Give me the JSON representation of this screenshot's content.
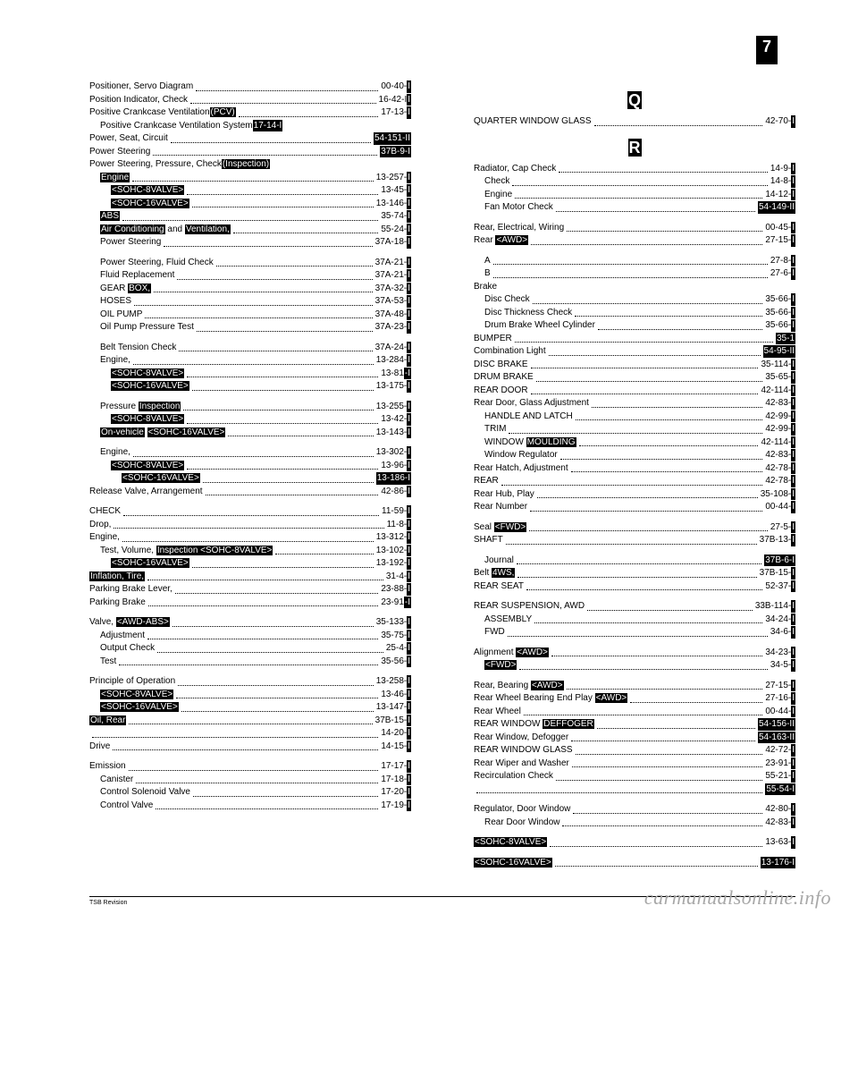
{
  "page_number": "7",
  "watermark": "carmanualsonline.info",
  "footnote": "TSB Revision",
  "left": [
    {
      "l": "Positioner, Servo Diagram",
      "r": "00-40-",
      "rh": "I",
      "i": 0
    },
    {
      "l": "Position Indicator, Check",
      "r": "16-42-I",
      "rh": "I",
      "i": 0
    },
    {
      "l": "Positive Crankcase Ventilation",
      "lh": "(PCV)",
      "r": "17-13-",
      "rh": "I",
      "i": 0
    },
    {
      "l": "Positive Crankcase Ventilation System",
      "rh": "17-14-I",
      "i": 1,
      "rhonly": true
    },
    {
      "l": "Power, Seat, Circuit",
      "r": "",
      "rh": "54-151-II",
      "i": 0
    },
    {
      "l": "Power Steering",
      "r": "",
      "rh": "37B-9-I",
      "i": 0
    },
    {
      "l": "Power Steering, Pressure, Check",
      "lh": "(Inspection)",
      "r": "",
      "i": 0,
      "noref": true
    },
    {
      "l": "Engine,",
      "lh2": "Engine",
      "r": "13-257-",
      "rh": "I",
      "i": 1
    },
    {
      "l": "<SOHC-8VALVE>",
      "r": "13-45-",
      "rh": "I",
      "i": 2,
      "allhl": true
    },
    {
      "l": "<SOHC-16VALVE>",
      "r": "13-146-",
      "rh": "I",
      "i": 2,
      "allhl": true
    },
    {
      "l": "ABS,",
      "lh2": "ABS",
      "r": "35-74-",
      "rh": "I",
      "i": 1
    },
    {
      "l": "Conditioning",
      "lh2": "Air Conditioning",
      "l2": " and ",
      "lh3": "Ventilation,",
      "r": "55-24-",
      "rh": "I",
      "i": 1
    },
    {
      "l": "Power Steering",
      "r": "37A-18-",
      "rh": "I",
      "i": 1
    },
    {
      "l": "",
      "i": 0,
      "blank": true
    },
    {
      "l": "Power Steering, Fluid Check",
      "r": "37A-21-",
      "rh": "I",
      "i": 1
    },
    {
      "l": "Fluid Replacement",
      "r": "37A-21-",
      "rh": "I",
      "i": 1
    },
    {
      "l": "GEAR ",
      "lh": "BOX,",
      "r": "37A-32-",
      "rh": "I",
      "i": 1
    },
    {
      "l": "HOSES",
      "r": "37A-53-",
      "rh": "I",
      "i": 1
    },
    {
      "l": "OIL PUMP",
      "r": "37A-48-",
      "rh": "I",
      "i": 1
    },
    {
      "l": "Oil Pump Pressure Test",
      "r": "37A-23-",
      "rh": "I",
      "i": 1
    },
    {
      "l": "",
      "i": 0,
      "blank": true
    },
    {
      "l": "Belt Tension Check",
      "r": "37A-24-",
      "rh": "I",
      "i": 1
    },
    {
      "l": "Engine,",
      "r": "13-284-",
      "rh": "I",
      "i": 1
    },
    {
      "l": "<SOHC-8VALVE>",
      "r": "13-81",
      "rh": "-I",
      "i": 2,
      "allhl": true
    },
    {
      "l": "<SOHC-16VALVE>",
      "r": "13-175-",
      "rh": "I",
      "i": 2,
      "allhl": true
    },
    {
      "l": "",
      "i": 0,
      "blank": true
    },
    {
      "l": "Pressure ",
      "lh": "Inspection",
      "r": "13-255-",
      "rh": "I",
      "i": 1
    },
    {
      "l": "<SOHC-8VALVE>",
      "r": "13-42-",
      "rh": "I",
      "i": 2,
      "allhl": true
    },
    {
      "l": "On-vehicle",
      "lpre": "On-vehicle",
      "l2": "              ",
      "lh": "<SOHC-16VALVE>",
      "r": "13-143-",
      "rh": "I",
      "i": 1
    },
    {
      "l": "",
      "i": 0,
      "blank": true
    },
    {
      "l": "Engine,",
      "r": "13-302-",
      "rh": "I",
      "i": 1
    },
    {
      "l": "<SOHC-8VALVE>",
      "r": "13-96-",
      "rh": "I",
      "i": 2,
      "allhl": true
    },
    {
      "l": "<SOHC-16VALVE>",
      "r": "13-186-",
      "rh": "I",
      "i": 3,
      "allhl": true,
      "rhall": true
    },
    {
      "l": "Release Valve, Arrangement",
      "r": "42-86-",
      "rh": "I",
      "i": 0
    },
    {
      "l": "",
      "i": 0,
      "blank": true
    },
    {
      "l": "CHECK",
      "r": "11-59-",
      "rh": "I",
      "i": 0
    },
    {
      "l": "Drop,",
      "r": "11-8-",
      "rh": "I",
      "i": 0
    },
    {
      "l": "Engine,",
      "r": "13-312-",
      "rh": "I",
      "i": 0
    },
    {
      "l": "Test, Volume, ",
      "lh": "Inspection <SOHC-8VALVE>",
      "r": "13-102-",
      "rh": "I",
      "i": 1
    },
    {
      "l": "<SOHC-16VALVE>",
      "r": "13-192-",
      "rh": "I",
      "i": 2,
      "allhl": true
    },
    {
      "l": "Inflation, Tire,",
      "lh2": "Inflation, Tire,",
      "r": "31-4-",
      "rh": "I",
      "i": 0
    },
    {
      "l": "Parking Brake Lever,",
      "r": "23-88-",
      "rh": "I",
      "i": 0
    },
    {
      "l": "Parking Brake",
      "r": "23-91",
      "rh": "-I",
      "i": 0
    },
    {
      "l": "",
      "i": 0,
      "blank": true
    },
    {
      "l": "Valve, ",
      "lh": "<AWD-ABS>",
      "r": "35-133-",
      "rh": "I",
      "i": 0
    },
    {
      "l": "Adjustment",
      "r": "35-75-",
      "rh": "I",
      "i": 1
    },
    {
      "l": "Output Check",
      "r": "25-4-",
      "rh": "I",
      "i": 1
    },
    {
      "l": "Test",
      "r": "35-56-",
      "rh": "I",
      "i": 1
    },
    {
      "l": "",
      "i": 0,
      "blank": true
    },
    {
      "l": "Principle of Operation",
      "r": "13-258-",
      "rh": "I",
      "i": 0
    },
    {
      "l": "<SOHC-8VALVE>",
      "r": "13-46-",
      "rh": "I",
      "i": 1,
      "allhl": true
    },
    {
      "l": "<SOHC-16VALVE>",
      "r": "13-147-",
      "rh": "I",
      "i": 1,
      "allhl": true
    },
    {
      "l": "Oil, Rear",
      "lh2": "Oil, Rear",
      "r": "37B-15-",
      "rh": "I",
      "i": 0
    },
    {
      "l": "",
      "r": "14-20-",
      "rh": "I",
      "i": 0,
      "dotonly": true
    },
    {
      "l": "Drive",
      "r": "14-15-",
      "rh": "I",
      "i": 0
    },
    {
      "l": "",
      "i": 0,
      "blank": true
    },
    {
      "l": "Emission",
      "r": "17-17-",
      "rh": "I",
      "i": 0
    },
    {
      "l": "Canister",
      "r": "17-18-",
      "rh": "I",
      "i": 1
    },
    {
      "l": "Control Solenoid Valve",
      "r": "17-20-",
      "rh": "I",
      "i": 1
    },
    {
      "l": "Control Valve",
      "r": "17-19-",
      "rh": "I",
      "i": 1
    }
  ],
  "right": [
    {
      "section": "Q"
    },
    {
      "l": "QUARTER WINDOW GLASS",
      "r": "42-70-",
      "rh": "I",
      "i": 0
    },
    {
      "section": "R"
    },
    {
      "l": "Radiator, Cap Check",
      "r": "14-9-",
      "rh": "I",
      "i": 0
    },
    {
      "l": "Check",
      "r": "14-8-",
      "rh": "I",
      "i": 1
    },
    {
      "l": "Engine",
      "r": "14-12-",
      "rh": "I",
      "i": 1
    },
    {
      "l": "Fan Motor Check",
      "r": "54-149-",
      "rh": "II",
      "i": 1,
      "rhall": true
    },
    {
      "l": "",
      "i": 0,
      "blank": true
    },
    {
      "l": "Rear, Electrical, Wiring",
      "r": "00-45-",
      "rh": "I",
      "i": 0
    },
    {
      "l": "Rear ",
      "lh": "<AWD>",
      "r": "27-15-",
      "rh": "I",
      "i": 0
    },
    {
      "l": "",
      "i": 0,
      "blank": true
    },
    {
      "l": "A",
      "r": "27-8-",
      "rh": "I",
      "i": 1
    },
    {
      "l": "B",
      "r": "27-6-",
      "rh": "I",
      "i": 1
    },
    {
      "l": "Brake",
      "i": 0,
      "noref": true
    },
    {
      "l": "Disc Check",
      "r": "35-66-",
      "rh": "I",
      "i": 1
    },
    {
      "l": "Disc Thickness Check",
      "r": "35-66-",
      "rh": "I",
      "i": 1
    },
    {
      "l": "Drum Brake Wheel Cylinder",
      "r": "35-66-",
      "rh": "I",
      "i": 1
    },
    {
      "l": "BUMPER",
      "r": "",
      "rh": "35-1",
      "i": 0
    },
    {
      "l": "Combination Light",
      "r": "54-95-",
      "rh": "II",
      "i": 0,
      "rhall": true
    },
    {
      "l": "DISC BRAKE",
      "r": "35-114-",
      "rh": "I",
      "i": 0
    },
    {
      "l": "DRUM BRAKE",
      "r": "35-65-",
      "rh": "I",
      "i": 0
    },
    {
      "l": "REAR DOOR",
      "r": "42-114-",
      "rh": "I",
      "i": 0
    },
    {
      "l": "Rear Door, Glass Adjustment",
      "r": "42-83-",
      "rh": "I",
      "i": 0
    },
    {
      "l": "HANDLE AND LATCH",
      "r": "42-99-",
      "rh": "I",
      "i": 1
    },
    {
      "l": "TRIM",
      "r": "42-99-",
      "rh": "I",
      "i": 1
    },
    {
      "l": "WINDOW ",
      "lh": "MOULDING",
      "r": "42-114-",
      "rh": "I",
      "i": 1
    },
    {
      "l": "Window Regulator",
      "r": "42-83-",
      "rh": "I",
      "i": 1
    },
    {
      "l": "Rear Hatch, Adjustment",
      "r": "42-78-",
      "rh": "I",
      "i": 0
    },
    {
      "l": "REAR",
      "r": "42-78-",
      "rh": "I",
      "i": 0
    },
    {
      "l": "Rear Hub, Play",
      "r": "35-108-",
      "rh": "I",
      "i": 0
    },
    {
      "l": "Rear Number",
      "r": "00-44-",
      "rh": "I",
      "i": 0
    },
    {
      "l": "",
      "i": 0,
      "blank": true
    },
    {
      "l": "Seal ",
      "lh": "<FWD>",
      "r": "27-5-",
      "rh": "I",
      "i": 0
    },
    {
      "l": "SHAFT",
      "r": "37B-13-",
      "rh": "I",
      "i": 0
    },
    {
      "l": "",
      "i": 0,
      "blank": true
    },
    {
      "l": "Journal",
      "r": "",
      "rh": "37B-6-I",
      "i": 1
    },
    {
      "l": "Belt ",
      "lh": "4WS,",
      "r": "37B-15-",
      "rh": "I",
      "i": 0
    },
    {
      "l": "REAR SEAT",
      "r": "52-37-",
      "rh": "I",
      "i": 0
    },
    {
      "l": "",
      "i": 0,
      "blank": true
    },
    {
      "l": "REAR SUSPENSION, AWD",
      "r": "33B-114-",
      "rh": "I",
      "i": 0
    },
    {
      "l": "ASSEMBLY",
      "r": "34-24-",
      "rh": "I",
      "i": 1
    },
    {
      "l": "FWD",
      "r": "34-6-",
      "rh": "I",
      "i": 1
    },
    {
      "l": "",
      "i": 0,
      "blank": true
    },
    {
      "l": "Alignment ",
      "lh": "<AWD>",
      "r": "34-23-",
      "rh": "I",
      "i": 0
    },
    {
      "l": "<FWD>",
      "r": "34-5-",
      "rh": "I",
      "i": 1,
      "allhl": true
    },
    {
      "l": "",
      "i": 0,
      "blank": true
    },
    {
      "l": "Rear, Bearing ",
      "lh": "<AWD>",
      "r": "27-15-",
      "rh": "I",
      "i": 0
    },
    {
      "l": "Rear Wheel Bearing End Play ",
      "lh": "<AWD>",
      "r": "27-16-",
      "rh": "I",
      "i": 0
    },
    {
      "l": "Rear Wheel",
      "r": "00-44-",
      "rh": "I",
      "i": 0
    },
    {
      "l": "REAR WINDOW ",
      "lh": "DEFFOGER",
      "r": "54-156-",
      "rh": "II",
      "i": 0,
      "rhall": true
    },
    {
      "l": "Rear Window, Defogger",
      "r": "54-163-",
      "rh": "II",
      "i": 0,
      "rhall": true
    },
    {
      "l": "REAR WINDOW GLASS",
      "r": "42-72-",
      "rh": "I",
      "i": 0
    },
    {
      "l": "Rear Wiper and Washer",
      "r": "23-91-",
      "rh": "I",
      "i": 0
    },
    {
      "l": "Recirculation Check",
      "r": "55-21-",
      "rh": "I",
      "i": 0
    },
    {
      "l": "",
      "r": "",
      "rh": "55-54-I",
      "i": 0,
      "dotonly": true
    },
    {
      "l": "",
      "i": 0,
      "blank": true
    },
    {
      "l": "Regulator, Door Window",
      "r": "42-80-",
      "rh": "I",
      "i": 0
    },
    {
      "l": "Rear Door Window",
      "r": "42-83-",
      "rh": "I",
      "i": 1
    },
    {
      "l": "",
      "i": 0,
      "blank": true
    },
    {
      "l": "<SOHC-8VALVE>",
      "r": "13-63-",
      "rh": "I",
      "i": 0,
      "allhl": true
    },
    {
      "l": "",
      "i": 0,
      "blank": true
    },
    {
      "l": "<SOHC-16VALVE>",
      "r": "",
      "rh": "13-176-I",
      "i": 0,
      "allhl": true,
      "dotafter": true
    }
  ]
}
